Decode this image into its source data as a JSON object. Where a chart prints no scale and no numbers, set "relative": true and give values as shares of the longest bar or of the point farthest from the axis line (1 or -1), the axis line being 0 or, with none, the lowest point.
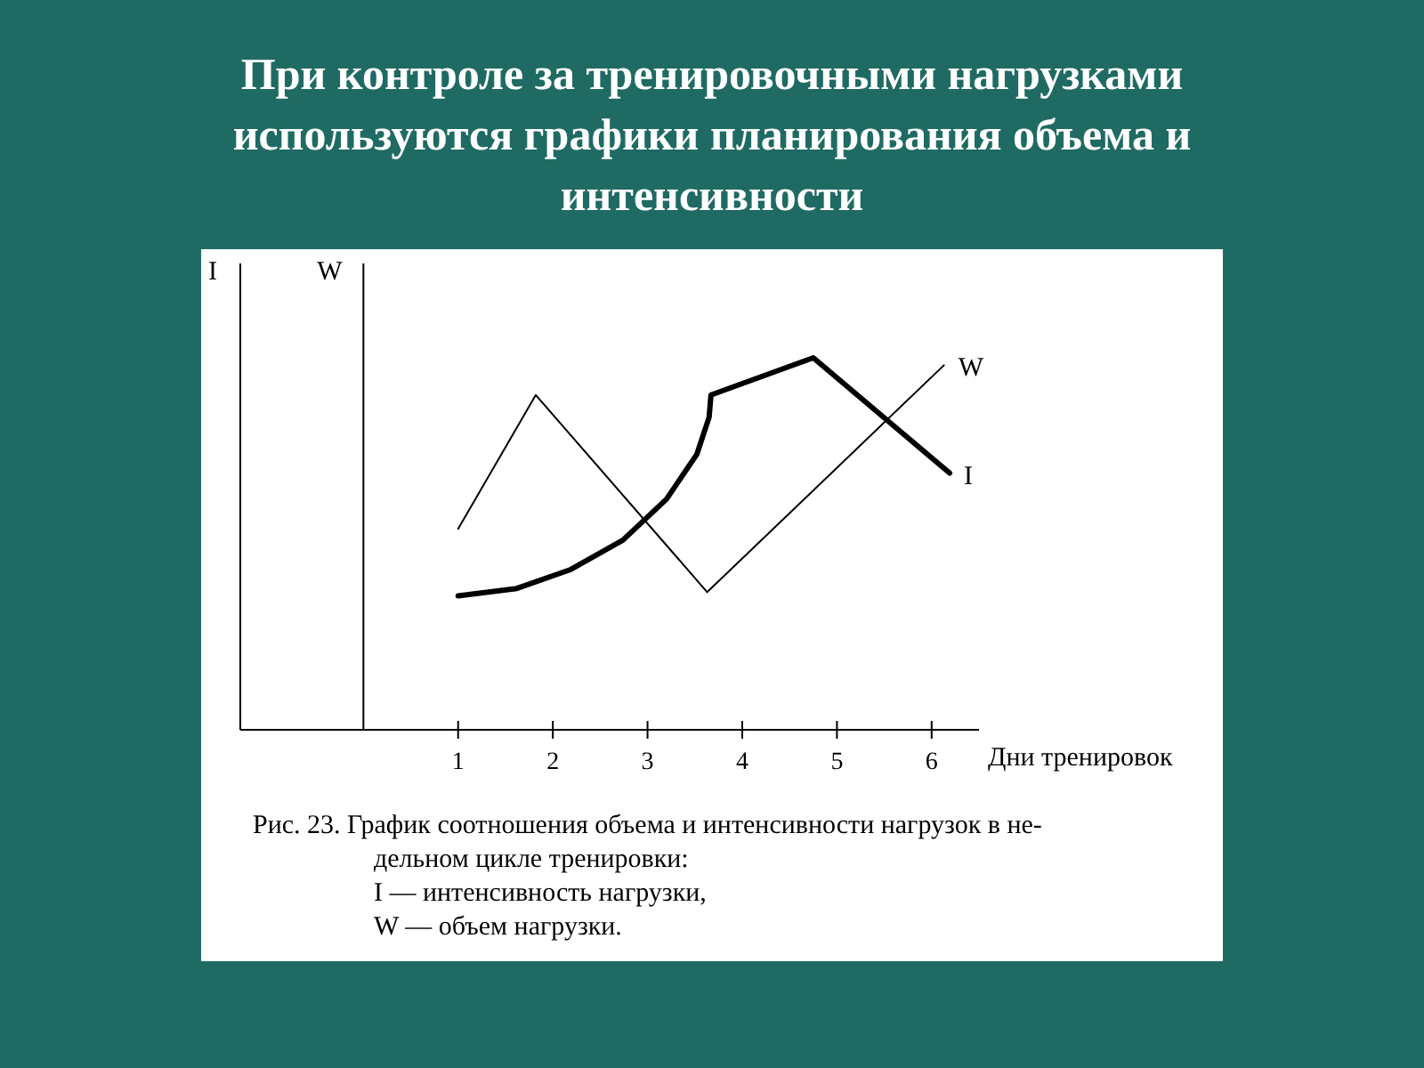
{
  "chart_data": {
    "type": "line",
    "title": "При контроле за тренировочными нагрузками используются графики планирования объема и интенсивности",
    "xlabel": "Дни тренировок",
    "ylabel": "I",
    "y2label": "W",
    "relative": true,
    "xlim": [
      -1.3,
      6.5
    ],
    "xticks": [
      1,
      2,
      3,
      4,
      5,
      6
    ],
    "marker": "none",
    "line_style": "solid",
    "series": [
      {
        "name": "W",
        "color": "#000000",
        "x": [
          1,
          1.82,
          3.63,
          6.13
        ],
        "values": [
          0.54,
          0.9,
          0.37,
          0.98
        ]
      },
      {
        "name": "I",
        "color": "#000000",
        "x": [
          1,
          1.62,
          2.18,
          2.74,
          3.2,
          3.52,
          3.65,
          3.67,
          4.75,
          6.19
        ],
        "values": [
          0.36,
          0.38,
          0.43,
          0.51,
          0.62,
          0.74,
          0.84,
          0.9,
          1,
          0.69
        ]
      }
    ],
    "annotations": [
      "Рис. 23. График соотношения объема и интенсивности нагрузок в не-",
      "дельном цикле тренировки:",
      "I — интенсивность нагрузки,",
      "W — объем нагрузки."
    ]
  }
}
